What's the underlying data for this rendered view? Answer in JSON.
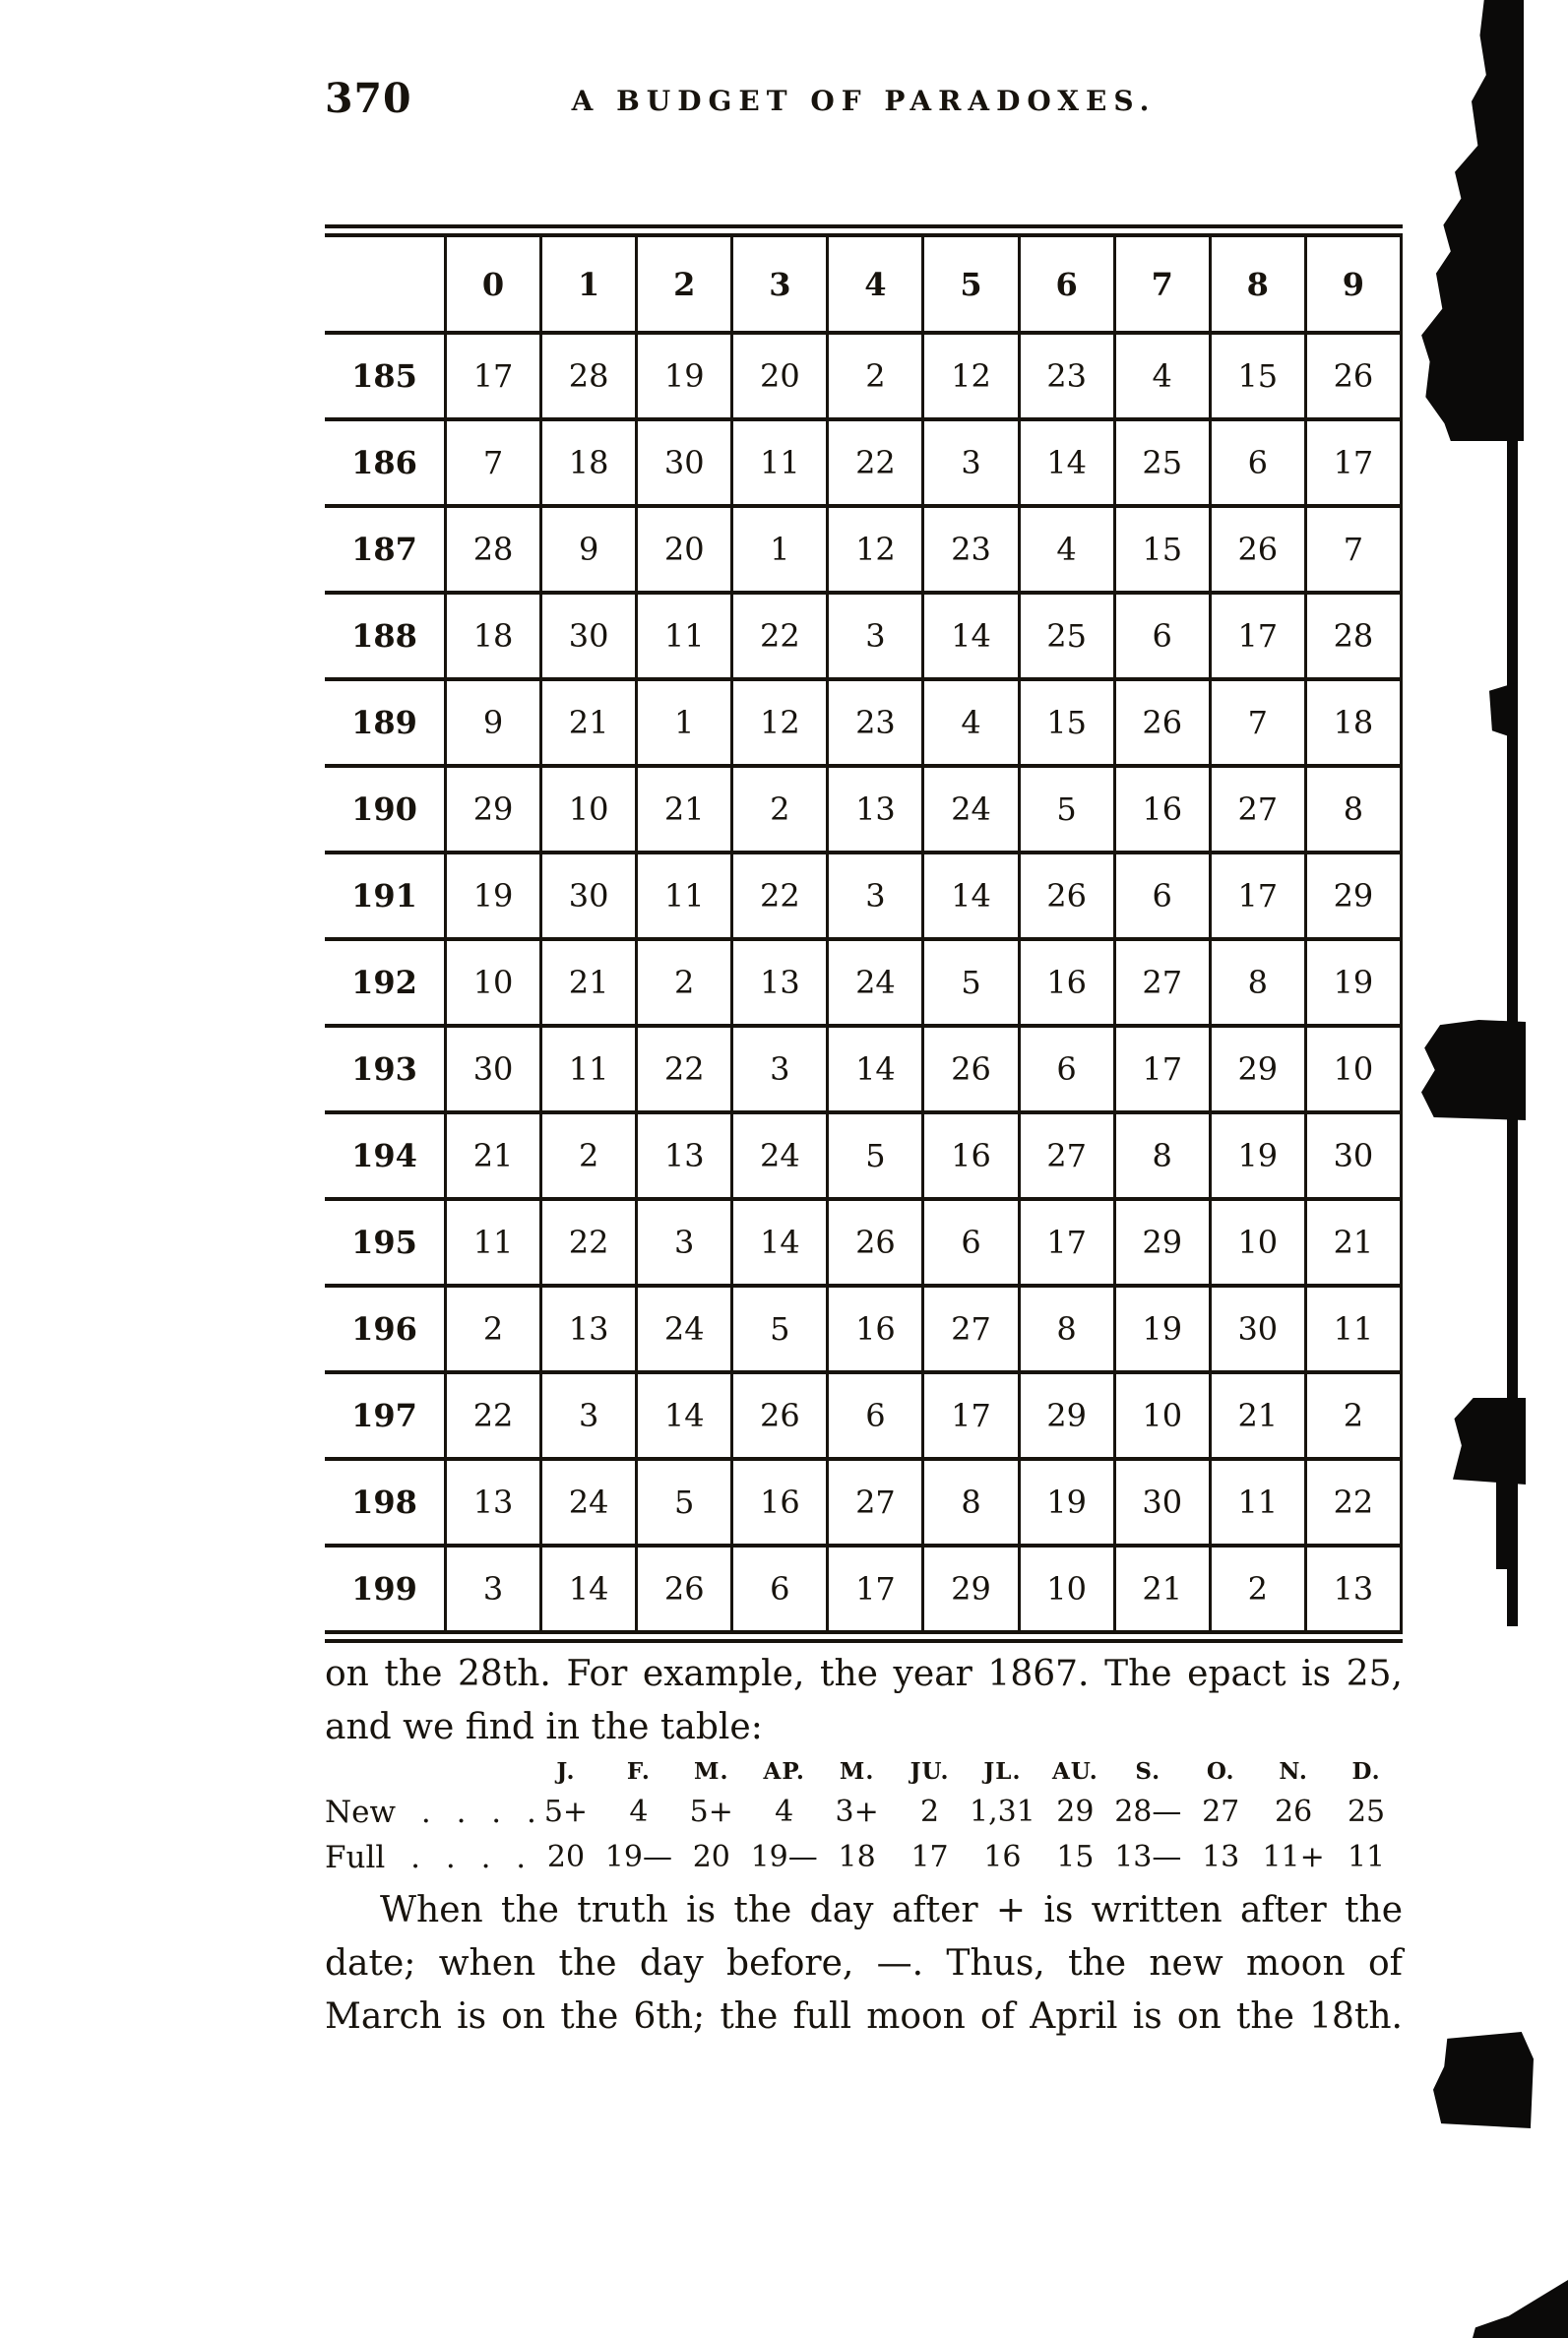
{
  "page": {
    "number": "370",
    "running_head": "A BUDGET OF PARADOXES."
  },
  "epact_table": {
    "col_headers": [
      "0",
      "1",
      "2",
      "3",
      "4",
      "5",
      "6",
      "7",
      "8",
      "9"
    ],
    "rows": [
      {
        "label": "185",
        "values": [
          "17",
          "28",
          "19",
          "20",
          "2",
          "12",
          "23",
          "4",
          "15",
          "26"
        ]
      },
      {
        "label": "186",
        "values": [
          "7",
          "18",
          "30",
          "11",
          "22",
          "3",
          "14",
          "25",
          "6",
          "17"
        ]
      },
      {
        "label": "187",
        "values": [
          "28",
          "9",
          "20",
          "1",
          "12",
          "23",
          "4",
          "15",
          "26",
          "7"
        ]
      },
      {
        "label": "188",
        "values": [
          "18",
          "30",
          "11",
          "22",
          "3",
          "14",
          "25",
          "6",
          "17",
          "28"
        ]
      },
      {
        "label": "189",
        "values": [
          "9",
          "21",
          "1",
          "12",
          "23",
          "4",
          "15",
          "26",
          "7",
          "18"
        ]
      },
      {
        "label": "190",
        "values": [
          "29",
          "10",
          "21",
          "2",
          "13",
          "24",
          "5",
          "16",
          "27",
          "8"
        ]
      },
      {
        "label": "191",
        "values": [
          "19",
          "30",
          "11",
          "22",
          "3",
          "14",
          "26",
          "6",
          "17",
          "29"
        ]
      },
      {
        "label": "192",
        "values": [
          "10",
          "21",
          "2",
          "13",
          "24",
          "5",
          "16",
          "27",
          "8",
          "19"
        ]
      },
      {
        "label": "193",
        "values": [
          "30",
          "11",
          "22",
          "3",
          "14",
          "26",
          "6",
          "17",
          "29",
          "10"
        ]
      },
      {
        "label": "194",
        "values": [
          "21",
          "2",
          "13",
          "24",
          "5",
          "16",
          "27",
          "8",
          "19",
          "30"
        ]
      },
      {
        "label": "195",
        "values": [
          "11",
          "22",
          "3",
          "14",
          "26",
          "6",
          "17",
          "29",
          "10",
          "21"
        ]
      },
      {
        "label": "196",
        "values": [
          "2",
          "13",
          "24",
          "5",
          "16",
          "27",
          "8",
          "19",
          "30",
          "11"
        ]
      },
      {
        "label": "197",
        "values": [
          "22",
          "3",
          "14",
          "26",
          "6",
          "17",
          "29",
          "10",
          "21",
          "2"
        ]
      },
      {
        "label": "198",
        "values": [
          "13",
          "24",
          "5",
          "16",
          "27",
          "8",
          "19",
          "30",
          "11",
          "22"
        ]
      },
      {
        "label": "199",
        "values": [
          "3",
          "14",
          "26",
          "6",
          "17",
          "29",
          "10",
          "21",
          "2",
          "13"
        ]
      }
    ]
  },
  "paragraph_1": {
    "lines": [
      "on the 28th. For example, the year 1867. The epact is 25,",
      "and we find in the table:"
    ]
  },
  "moon_table": {
    "months": [
      "J.",
      "F.",
      "M.",
      "AP.",
      "M.",
      "JU.",
      "JL.",
      "AU.",
      "S.",
      "O.",
      "N.",
      "D."
    ],
    "rows": [
      {
        "label": "New . . . .",
        "values": [
          "5+",
          "4",
          "5+",
          "4",
          "3+",
          "2",
          "1,31",
          "29",
          "28—",
          "27",
          "26",
          "25"
        ]
      },
      {
        "label": "Full . . . .",
        "values": [
          "20",
          "19—",
          "20",
          "19—",
          "18",
          "17",
          "16",
          "15",
          "13—",
          "13",
          "11+",
          "11"
        ]
      }
    ]
  },
  "paragraph_2": {
    "lines": [
      "When the truth is the day after + is written after the",
      "date; when the day before, —. Thus, the new moon of",
      "March is on the 6th; the full moon of April is on the 18th."
    ]
  },
  "colors": {
    "ink": "#17130d",
    "paper": "#ffffff"
  }
}
